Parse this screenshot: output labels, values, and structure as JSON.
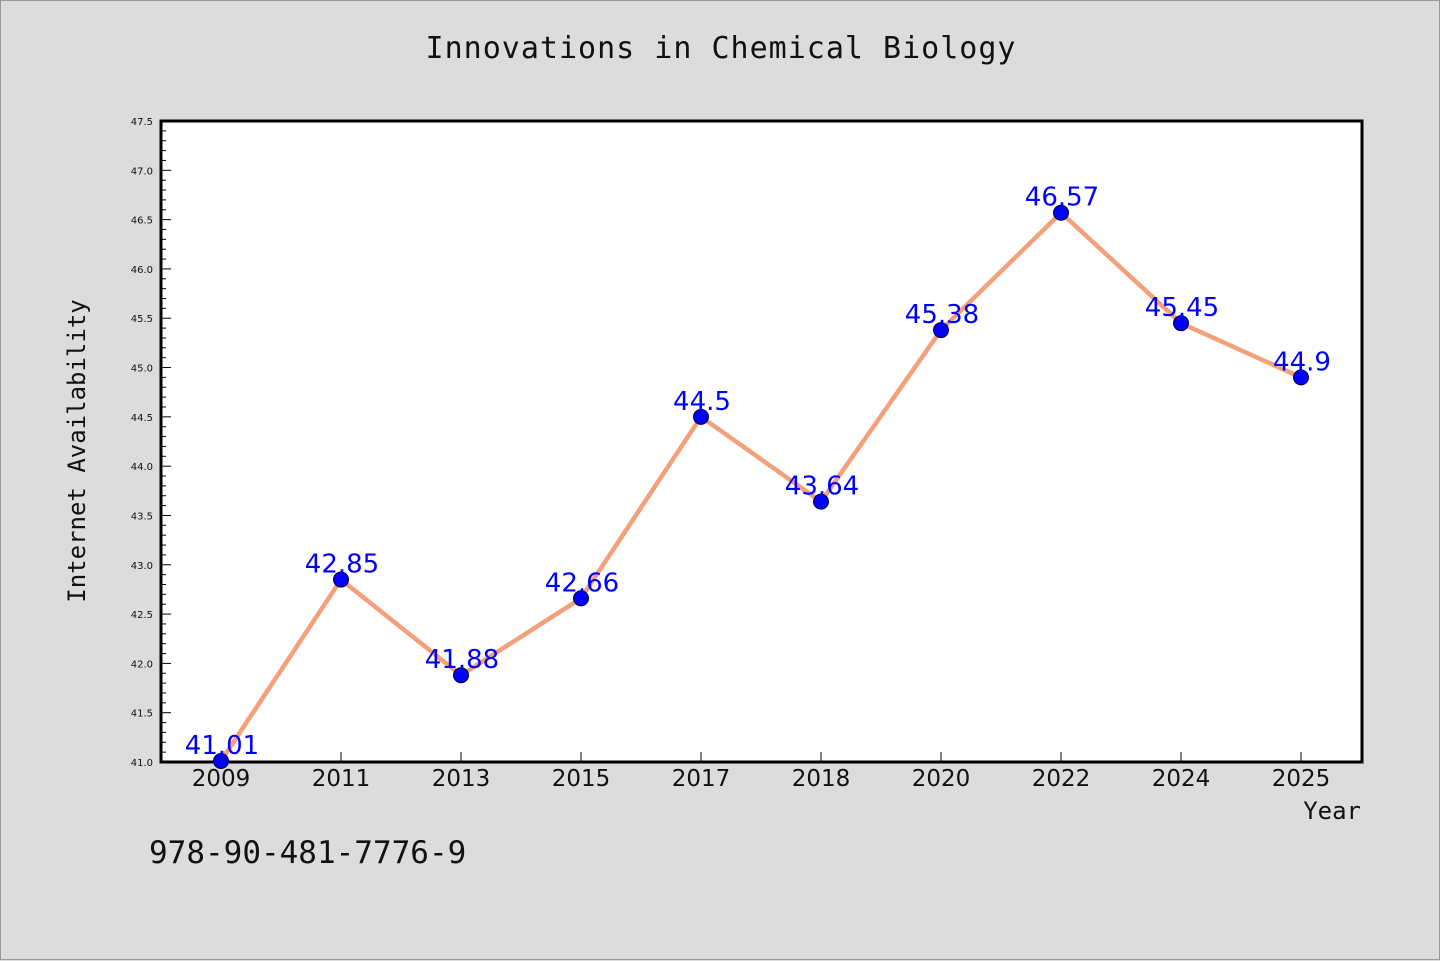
{
  "chart_data": {
    "type": "line",
    "title": "Innovations in Chemical Biology",
    "xlabel": "Year",
    "ylabel": "Internet Availability",
    "categories": [
      "2009",
      "2011",
      "2013",
      "2015",
      "2017",
      "2018",
      "2020",
      "2022",
      "2024",
      "2025"
    ],
    "series": [
      {
        "values": [
          41.01,
          42.85,
          41.88,
          42.66,
          44.5,
          43.64,
          45.38,
          46.57,
          45.45,
          44.9
        ],
        "line_color": "#f4a07a",
        "marker_color": "#0000ff"
      }
    ],
    "data_labels": [
      "41.01",
      "42.85",
      "41.88",
      "42.66",
      "44.5",
      "43.64",
      "45.38",
      "46.57",
      "45.45",
      "44.9"
    ],
    "ylim": [
      41.0,
      47.5
    ],
    "yticks": [
      "41.0",
      "41.5",
      "42.0",
      "42.5",
      "43.0",
      "43.5",
      "44.0",
      "44.5",
      "45.0",
      "45.5",
      "46.0",
      "46.5",
      "47.0",
      "47.5"
    ],
    "grid": false,
    "legend": "none"
  },
  "footer": {
    "isbn": "978-90-481-7776-9"
  },
  "colors": {
    "background": "#dcdcdc",
    "plot_background": "#ffffff",
    "line": "#f4a07a",
    "marker": "#0000ff",
    "data_label": "#0000ff"
  }
}
